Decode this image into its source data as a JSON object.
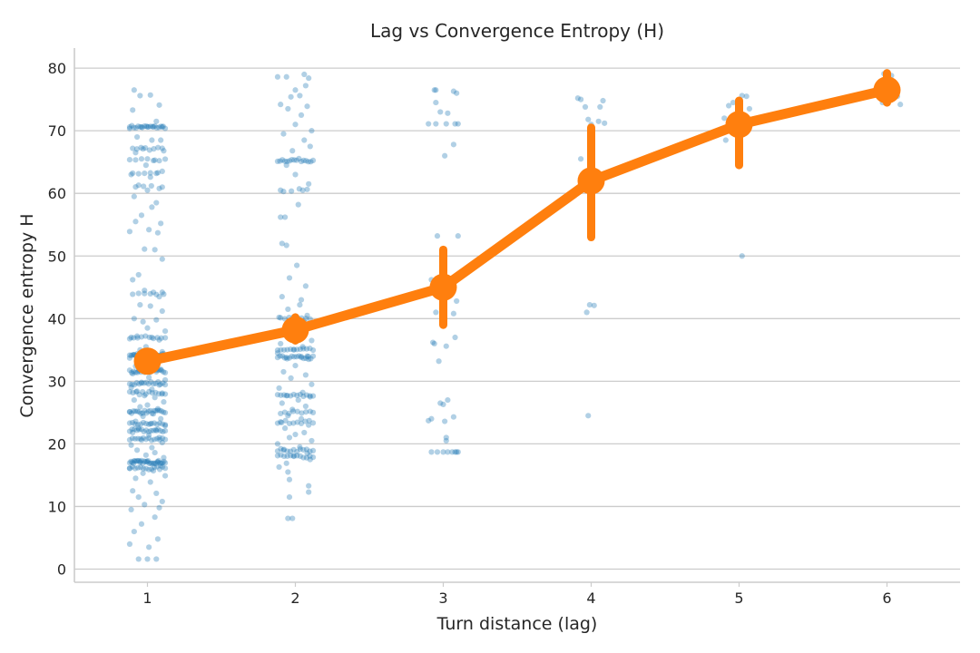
{
  "chart_data": {
    "type": "scatter",
    "title": "Lag vs Convergence Entropy (H)",
    "xlabel": "Turn distance (lag)",
    "ylabel": "Convergence entropy H",
    "categories": [
      "1",
      "2",
      "3",
      "4",
      "5",
      "6"
    ],
    "ylim": [
      -2,
      83
    ],
    "yticks": [
      0,
      10,
      20,
      30,
      40,
      50,
      60,
      70,
      80
    ],
    "grid": "horizontal",
    "colors": {
      "points": "#1f77b4",
      "mean": "#ff7f0e",
      "grid": "#cccccc",
      "text": "#262626"
    },
    "mean_series": {
      "values": [
        33.2,
        38.2,
        45.0,
        62.0,
        71.0,
        76.5
      ],
      "ci_low": [
        32.0,
        36.5,
        39.0,
        53.0,
        64.5,
        74.5
      ],
      "ci_high": [
        34.6,
        40.2,
        51.0,
        70.5,
        74.8,
        79.2
      ]
    },
    "strips": [
      {
        "category": "1",
        "values": [
          76.5,
          75.6,
          75.7,
          74.1,
          73.3,
          71.5,
          70.6,
          70.6,
          70.6,
          70.6,
          70.6,
          69.0,
          68.5,
          68.5,
          67.1,
          66.8,
          66.5,
          65.3,
          64.5,
          63.3,
          63.0,
          62.6,
          61.3,
          61.0,
          60.5,
          59.5,
          58.5,
          57.8,
          56.5,
          55.5,
          55.2,
          54.2,
          53.9,
          53.7,
          51.1,
          51.0,
          49.5,
          47.0,
          46.2,
          44.5,
          44.2,
          43.9,
          43.5,
          42.2,
          42.0,
          41.2,
          40.0,
          39.5,
          39.8,
          38.5,
          38.0,
          37.2,
          37.0,
          37.0,
          36.6,
          35.5,
          35.0,
          34.7,
          34.4,
          34.2,
          34.0,
          33.8,
          33.7,
          33.4,
          33.0,
          32.6,
          32.4,
          32.1,
          31.9,
          31.6,
          31.5,
          31.2,
          30.6,
          30.2,
          29.7,
          29.4,
          29.0,
          28.7,
          28.4,
          28.1,
          27.7,
          27.4,
          27.0,
          26.7,
          26.2,
          25.9,
          25.6,
          25.1,
          24.8,
          24.4,
          24.0,
          23.6,
          23.2,
          22.9,
          22.5,
          22.1,
          21.8,
          21.4,
          21.0,
          20.6,
          20.2,
          19.8,
          19.4,
          19.0,
          18.6,
          18.2,
          17.8,
          17.3,
          17.1,
          17.1,
          17.0,
          16.5,
          16.1,
          15.7,
          15.3,
          14.9,
          14.5,
          13.9,
          12.5,
          12.1,
          11.5,
          10.8,
          10.3,
          9.8,
          9.5,
          8.3,
          7.2,
          6.0,
          4.8,
          4.0,
          3.5,
          1.6,
          1.6,
          1.6
        ],
        "offsets": [
          -0.09,
          -0.05,
          0.02,
          0.08,
          -0.1,
          0.06,
          -0.12,
          -0.04,
          0.0,
          0.04,
          0.1,
          -0.07,
          0.03,
          0.09,
          -0.03,
          0.11,
          -0.08,
          0.05,
          -0.01,
          0.07,
          -0.11,
          0.02,
          -0.06,
          0.1,
          0.0,
          -0.09,
          0.06,
          0.03,
          -0.04,
          -0.08,
          0.09,
          0.01,
          -0.12,
          0.07,
          -0.02,
          0.05,
          0.1,
          -0.06,
          -0.1,
          -0.02,
          0.04,
          0.11,
          0.08,
          -0.05,
          0.02,
          0.1,
          -0.09,
          -0.03,
          0.06,
          0.0,
          0.12,
          -0.07,
          -0.11,
          0.03,
          0.08,
          -0.01,
          -0.05,
          0.1,
          0.05,
          -0.09,
          0.02,
          0.07,
          -0.12,
          0.11,
          -0.03,
          0.04,
          -0.08,
          0.0,
          0.09,
          -0.06,
          0.06,
          -0.1,
          0.01,
          0.12,
          -0.04,
          0.08,
          -0.11,
          0.03,
          -0.07,
          0.1,
          -0.02,
          0.05,
          -0.09,
          0.11,
          0.0,
          -0.05,
          0.07,
          -0.12,
          0.04,
          -0.03,
          0.09,
          -0.08,
          0.02,
          0.12,
          -0.06,
          0.06,
          -0.1,
          0.01,
          0.08,
          -0.04,
          0.1,
          -0.11,
          0.03,
          -0.07,
          0.05,
          -0.01,
          0.11,
          -0.09,
          0.07,
          0.0,
          -0.05,
          0.09,
          -0.12,
          0.04,
          -0.03,
          0.12,
          -0.08,
          0.02,
          -0.1,
          0.06,
          -0.06,
          0.1,
          -0.02,
          0.08,
          -0.11,
          0.05,
          -0.04,
          -0.09,
          0.07,
          -0.12,
          0.01,
          0.06,
          -0.06,
          0.0
        ],
        "clusters": [
          [
            70.6,
            0.12,
            18
          ],
          [
            67.1,
            0.1,
            8
          ],
          [
            65.3,
            0.12,
            7
          ],
          [
            63.3,
            0.1,
            6
          ],
          [
            61.0,
            0.08,
            4
          ],
          [
            44.0,
            0.1,
            6
          ],
          [
            37.0,
            0.12,
            10
          ],
          [
            34.2,
            0.12,
            24
          ],
          [
            31.6,
            0.12,
            20
          ],
          [
            29.7,
            0.12,
            16
          ],
          [
            28.1,
            0.12,
            12
          ],
          [
            25.1,
            0.12,
            20
          ],
          [
            23.2,
            0.12,
            14
          ],
          [
            22.1,
            0.12,
            16
          ],
          [
            20.8,
            0.12,
            14
          ],
          [
            17.1,
            0.12,
            28
          ],
          [
            16.1,
            0.12,
            14
          ]
        ]
      },
      {
        "category": "2",
        "values": [
          79.0,
          78.6,
          78.6,
          78.4,
          77.2,
          76.5,
          75.6,
          75.4,
          74.2,
          73.9,
          73.5,
          72.5,
          71.0,
          70.0,
          69.5,
          68.5,
          67.5,
          66.8,
          64.5,
          63.0,
          61.5,
          60.5,
          60.5,
          58.2,
          56.2,
          56.2,
          52.0,
          51.7,
          48.5,
          46.5,
          45.2,
          43.5,
          43.0,
          42.2,
          41.5,
          40.5,
          40.2,
          39.5,
          39.0,
          38.5,
          37.5,
          37.0,
          36.5,
          36.0,
          35.5,
          35.0,
          34.5,
          34.0,
          33.8,
          33.8,
          33.5,
          32.5,
          31.5,
          31.0,
          30.5,
          29.5,
          28.9,
          28.2,
          27.7,
          27.5,
          27.0,
          26.5,
          26.0,
          25.5,
          25.0,
          24.5,
          24.0,
          23.5,
          23.0,
          22.5,
          21.8,
          21.5,
          21.0,
          20.5,
          20.0,
          19.5,
          19.0,
          18.5,
          18.0,
          17.5,
          16.9,
          16.3,
          15.5,
          14.3,
          13.3,
          12.3,
          11.5,
          8.1,
          8.1
        ],
        "offsets": [
          0.06,
          -0.12,
          -0.06,
          0.09,
          0.07,
          0.0,
          0.03,
          -0.03,
          -0.1,
          0.08,
          -0.05,
          0.04,
          0.0,
          0.11,
          -0.08,
          0.06,
          0.1,
          -0.02,
          -0.06,
          0.0,
          0.09,
          -0.1,
          0.05,
          0.02,
          -0.1,
          -0.07,
          -0.09,
          -0.06,
          0.01,
          -0.04,
          0.07,
          -0.09,
          0.04,
          0.03,
          -0.05,
          0.08,
          -0.11,
          0.06,
          -0.03,
          0.1,
          -0.07,
          0.02,
          0.11,
          -0.1,
          0.05,
          -0.01,
          -0.12,
          0.08,
          0.04,
          -0.06,
          0.09,
          0.0,
          -0.08,
          0.07,
          -0.03,
          0.11,
          -0.11,
          0.05,
          -0.06,
          0.1,
          0.02,
          -0.09,
          0.07,
          -0.02,
          0.12,
          -0.05,
          0.04,
          -0.1,
          0.09,
          -0.07,
          0.06,
          0.0,
          -0.04,
          0.11,
          -0.12,
          0.03,
          -0.08,
          0.08,
          -0.01,
          0.1,
          -0.06,
          -0.11,
          -0.05,
          -0.04,
          0.09,
          0.09,
          -0.04,
          -0.05,
          -0.02
        ],
        "clusters": [
          [
            65.3,
            0.12,
            16
          ],
          [
            60.5,
            0.08,
            4
          ],
          [
            40.0,
            0.1,
            8
          ],
          [
            35.0,
            0.12,
            12
          ],
          [
            33.8,
            0.12,
            16
          ],
          [
            27.7,
            0.12,
            12
          ],
          [
            25.0,
            0.1,
            8
          ],
          [
            23.5,
            0.12,
            10
          ],
          [
            19.0,
            0.12,
            12
          ],
          [
            18.0,
            0.12,
            12
          ]
        ]
      },
      {
        "category": "3",
        "values": [
          76.5,
          76.5,
          76.3,
          76.0,
          74.5,
          73.0,
          72.8,
          71.1,
          71.1,
          71.1,
          71.1,
          71.1,
          67.8,
          66.0,
          53.2,
          53.2,
          46.5,
          46.2,
          44.2,
          43.5,
          42.8,
          41.0,
          40.8,
          37.0,
          36.2,
          36.0,
          35.6,
          33.2,
          27.0,
          26.5,
          26.3,
          24.3,
          24.0,
          23.7,
          23.6,
          21.0,
          20.5,
          18.7,
          18.7,
          18.7,
          18.7,
          18.7,
          18.7,
          18.7,
          18.7
        ],
        "offsets": [
          -0.06,
          -0.05,
          0.07,
          0.09,
          -0.05,
          -0.02,
          0.03,
          -0.1,
          -0.05,
          0.02,
          0.08,
          0.1,
          0.07,
          0.01,
          -0.04,
          0.1,
          0.02,
          -0.08,
          0.05,
          -0.03,
          0.09,
          -0.05,
          0.07,
          0.08,
          -0.07,
          -0.06,
          0.02,
          -0.03,
          0.03,
          -0.02,
          0.0,
          0.07,
          -0.08,
          -0.1,
          0.01,
          0.02,
          0.02,
          -0.08,
          -0.04,
          0.0,
          0.03,
          0.06,
          0.08,
          0.09,
          0.1
        ],
        "clusters": []
      },
      {
        "category": "4",
        "values": [
          75.2,
          75.0,
          74.8,
          73.8,
          73.8,
          71.8,
          71.5,
          71.2,
          71.0,
          68.5,
          65.5,
          42.2,
          42.1,
          41.0,
          24.5
        ],
        "offsets": [
          -0.09,
          -0.07,
          0.08,
          -0.04,
          0.06,
          -0.02,
          0.05,
          0.09,
          0.0,
          0.0,
          -0.07,
          -0.01,
          0.02,
          -0.03,
          -0.02
        ],
        "clusters": []
      },
      {
        "category": "5",
        "values": [
          75.6,
          75.5,
          74.5,
          74.0,
          73.8,
          73.5,
          72.0,
          71.5,
          70.5,
          68.5,
          50.0
        ],
        "offsets": [
          0.02,
          0.05,
          -0.04,
          -0.07,
          0.0,
          0.07,
          -0.1,
          0.04,
          -0.02,
          -0.09,
          0.02
        ],
        "clusters": []
      },
      {
        "category": "6",
        "values": [
          79.3,
          79.1,
          78.8,
          77.5,
          76.5,
          75.5,
          74.5,
          74.2
        ],
        "offsets": [
          0.0,
          -0.02,
          0.03,
          -0.05,
          0.06,
          0.07,
          -0.03,
          0.09
        ],
        "clusters": []
      }
    ]
  }
}
